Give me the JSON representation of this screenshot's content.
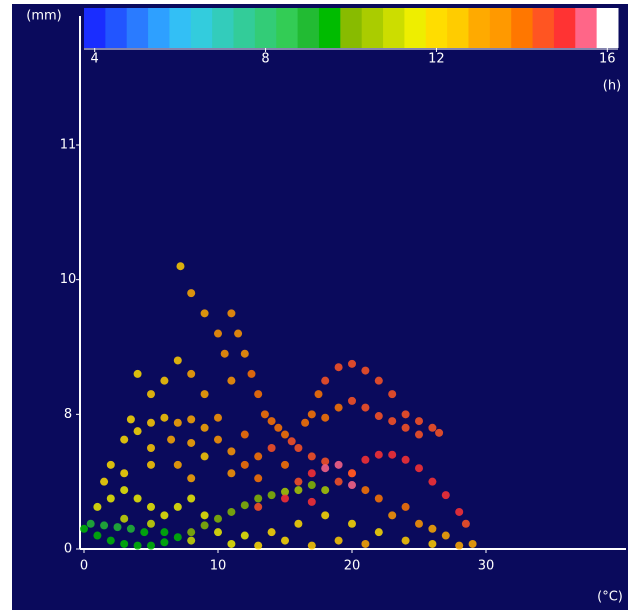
{
  "chart_data": {
    "type": "scatter",
    "y_label": "(mm)",
    "x_label": "(°C)",
    "xlim": [
      0,
      40
    ],
    "xticks": [
      0,
      10,
      20,
      30
    ],
    "ylim": [
      0,
      11
    ],
    "yticks": [
      0,
      8,
      10,
      11
    ],
    "y_scale": "equal-tick-spacing",
    "colorbar": {
      "label": "(h)",
      "clim": [
        3.75,
        16.25
      ],
      "ticks": [
        4,
        8,
        12,
        16
      ],
      "colors": [
        "#1a2dff",
        "#2255ff",
        "#2a7bff",
        "#2ea0ff",
        "#33bff5",
        "#33ccdd",
        "#33ccbb",
        "#33cc99",
        "#33cc77",
        "#33cc55",
        "#22bb33",
        "#00bb00",
        "#88bb00",
        "#aacc00",
        "#ccdd00",
        "#eeee00",
        "#ffdd00",
        "#ffcc00",
        "#ffaa00",
        "#ff9900",
        "#ff7700",
        "#ff5522",
        "#ff3333",
        "#ff6688",
        "#ffffff"
      ]
    },
    "x": [
      0,
      1,
      2,
      3,
      4,
      5,
      6,
      7,
      8,
      9,
      10,
      11,
      12,
      13,
      14,
      15,
      16,
      17,
      18,
      0.5,
      1.5,
      2.5,
      3.5,
      4.5,
      6,
      1,
      2,
      3,
      4,
      5,
      6,
      7,
      8,
      9,
      10,
      12,
      14,
      16,
      18,
      20,
      22,
      24,
      26,
      28,
      29,
      3,
      5,
      8,
      11,
      13,
      15,
      17,
      19,
      21,
      11,
      11.5,
      12,
      12.5,
      13,
      13.5,
      14,
      14.5,
      15,
      15.5,
      16,
      17,
      7.2,
      8,
      9,
      10,
      10.5,
      11,
      4,
      5,
      6,
      7,
      8,
      9,
      3.5,
      4,
      5,
      6,
      7,
      8,
      9,
      10,
      3,
      5,
      6.5,
      8,
      9,
      10,
      11,
      12,
      12,
      13,
      14,
      2,
      1.5,
      3,
      5,
      7,
      8,
      11,
      13,
      15,
      16,
      17,
      18,
      19,
      20,
      21,
      22,
      23,
      24,
      25,
      26,
      27,
      16.5,
      17,
      17.5,
      18,
      19,
      20,
      21,
      22,
      23,
      24,
      25,
      26,
      26.5,
      18,
      19,
      20,
      21,
      22,
      23,
      24,
      25,
      20,
      21,
      22,
      23,
      24,
      25,
      26,
      27,
      28,
      28.5,
      19,
      18,
      20,
      15,
      13,
      17
    ],
    "y": [
      1.2,
      0.8,
      0.5,
      0.3,
      0.2,
      0.2,
      0.4,
      0.7,
      1.0,
      1.4,
      1.8,
      2.2,
      2.6,
      3.0,
      3.2,
      3.4,
      3.5,
      3.8,
      3.5,
      1.5,
      1.4,
      1.3,
      1.2,
      1.0,
      1.0,
      2.5,
      3,
      3.5,
      3,
      2.5,
      2,
      2.5,
      3,
      2,
      1,
      0.8,
      1,
      1.5,
      2,
      1.5,
      1,
      0.5,
      0.3,
      0.2,
      0.3,
      1.8,
      1.5,
      0.5,
      0.3,
      0.2,
      0.5,
      0.2,
      0.5,
      0.3,
      9.5,
      9.2,
      8.9,
      8.6,
      8.3,
      8.0,
      7.6,
      7.2,
      6.8,
      6.4,
      6.0,
      5.5,
      10.1,
      9.8,
      9.5,
      9.2,
      8.9,
      8.5,
      8.6,
      8.3,
      8.5,
      8.8,
      8.6,
      8.3,
      7.7,
      7.0,
      7.5,
      7.8,
      7.5,
      7.7,
      7.2,
      7.8,
      6.5,
      6.0,
      6.5,
      6.3,
      5.5,
      6.5,
      5.8,
      6.8,
      5.0,
      5.5,
      6.0,
      5,
      4,
      4.5,
      5,
      5,
      4.2,
      4.5,
      4.2,
      5.0,
      4.0,
      4.5,
      5.2,
      4.0,
      4.5,
      3.5,
      3.0,
      2.0,
      2.5,
      1.5,
      1.2,
      0.8,
      7.5,
      8.0,
      8.3,
      8.5,
      8.7,
      8.75,
      8.65,
      8.5,
      8.3,
      8.0,
      7.6,
      7.2,
      6.9,
      7.8,
      8.1,
      8.2,
      8.1,
      7.9,
      7.6,
      7.2,
      6.8,
      4.5,
      5.3,
      5.6,
      5.6,
      5.3,
      4.8,
      4.0,
      3.2,
      2.2,
      1.5,
      5.0,
      4.8,
      3.8,
      3.0,
      2.5,
      2.8
    ],
    "hours": [
      9.5,
      9.5,
      9.5,
      9.5,
      9.5,
      9.5,
      9.5,
      9.5,
      10,
      10,
      10,
      10,
      10,
      10,
      10,
      10.5,
      10.5,
      10,
      10.5,
      9,
      9,
      9,
      9,
      9.5,
      9.5,
      11.5,
      11.5,
      11.5,
      11.5,
      11.5,
      11.5,
      11.5,
      11.5,
      11.5,
      11.5,
      11.5,
      12,
      12,
      12,
      12,
      12,
      12.5,
      12.5,
      13,
      13,
      11,
      11,
      11,
      11.5,
      12,
      12,
      12.5,
      12.5,
      13,
      13.5,
      13.5,
      13.5,
      14,
      14,
      14,
      14,
      14,
      14,
      14.5,
      14.5,
      14.5,
      12.5,
      13,
      13,
      13.5,
      13.5,
      13.5,
      12,
      12.5,
      12.5,
      12.5,
      13,
      13,
      12,
      12,
      12.5,
      12.5,
      13,
      13,
      13,
      13.5,
      12,
      12.5,
      13,
      13,
      12.5,
      13.5,
      13.5,
      14,
      14,
      14,
      14.5,
      12,
      12,
      12,
      12.5,
      13,
      13,
      13.5,
      14,
      14,
      14.5,
      15,
      14.5,
      14.5,
      14.5,
      14,
      14,
      13.5,
      14,
      13.5,
      13,
      13,
      14,
      14,
      14,
      14.5,
      14.5,
      14.5,
      14.5,
      14.5,
      14.5,
      14.5,
      14.5,
      14.5,
      14.5,
      14,
      14,
      14.5,
      14.5,
      14.5,
      14.5,
      14.5,
      14.5,
      14.5,
      15,
      15,
      15,
      15,
      15,
      15,
      15,
      15,
      14.5,
      15.5,
      15.5,
      15.5,
      15,
      14.5,
      15
    ]
  }
}
